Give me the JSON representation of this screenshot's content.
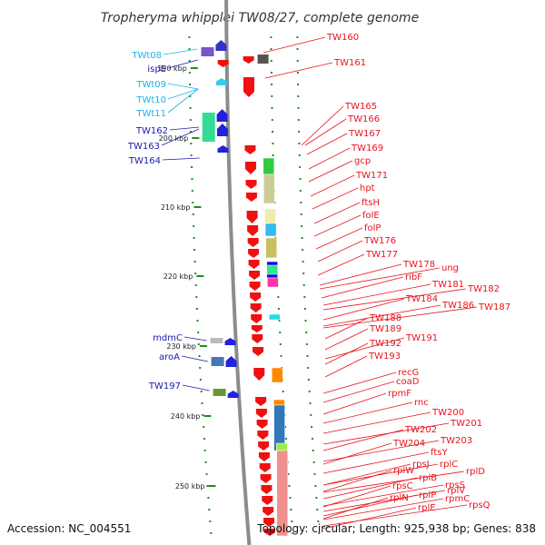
{
  "title": "Tropheryma whipplei TW08/27, complete genome",
  "footer": {
    "accession": "Accession: NC_004551",
    "topology": "Topology: circular; Length: 925,938 bp; Genes: 838"
  },
  "colors": {
    "forward_label": "#e8141c",
    "reverse_label_dark": "#1a1ab0",
    "reverse_label_light": "#1ab4e8",
    "backbone": "#8c8c8c",
    "tick": "#228b22"
  },
  "scale_ticks": [
    "190 kbp",
    "200 kbp",
    "210 kbp",
    "220 kbp",
    "230 kbp",
    "240 kbp",
    "250 kbp"
  ],
  "forward_labels": [
    "TW160",
    "TW161",
    "TW165",
    "TW166",
    "TW167",
    "TW169",
    "gcp",
    "TW171",
    "hpt",
    "ftsH",
    "folE",
    "folP",
    "TW176",
    "TW177",
    "TW178",
    "ung",
    "ribF",
    "TW181",
    "TW182",
    "TW184",
    "TW186",
    "TW187",
    "TW188",
    "TW189",
    "TW191",
    "TW192",
    "TW193",
    "recG",
    "coaD",
    "rpmF",
    "rnc",
    "TW200",
    "TW201",
    "TW202",
    "TW203",
    "TW204",
    "ftsY",
    "rpsJ",
    "rplC",
    "rplW",
    "rplD",
    "rplB",
    "rpsS",
    "rpsC",
    "rplV",
    "rplP",
    "rplN",
    "rpmC",
    "rpsQ",
    "rplE"
  ],
  "reverse_labels": [
    "TWt08",
    "ispE",
    "TWt09",
    "TWt10",
    "TWt11",
    "TW162",
    "TW163",
    "TW164",
    "mdmC",
    "aroA",
    "TW197"
  ]
}
